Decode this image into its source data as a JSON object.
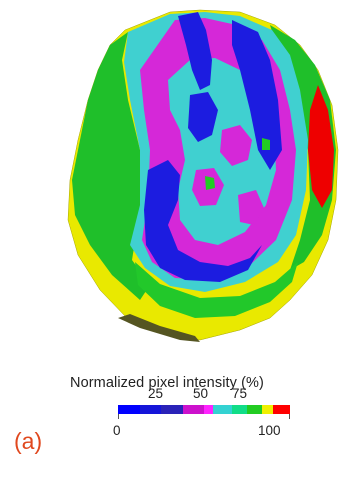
{
  "figure": {
    "panel_label": "(a)"
  },
  "legend": {
    "title": "Normalized pixel intensity (%)",
    "ticks_top": [
      "25",
      "50",
      "75"
    ],
    "tick_min": "0",
    "tick_max": "100",
    "segments": [
      {
        "color": "#0000ff",
        "from": 0,
        "to": 12.5
      },
      {
        "color": "#1515d9",
        "from": 12.5,
        "to": 25
      },
      {
        "color": "#2a22b8",
        "from": 25,
        "to": 37.5
      },
      {
        "color": "#cc11cc",
        "from": 37.5,
        "to": 50
      },
      {
        "color": "#ff22ff",
        "from": 50,
        "to": 55
      },
      {
        "color": "#33d2d2",
        "from": 55,
        "to": 66
      },
      {
        "color": "#11dd88",
        "from": 66,
        "to": 75
      },
      {
        "color": "#22cc22",
        "from": 75,
        "to": 84
      },
      {
        "color": "#f0f000",
        "from": 84,
        "to": 90
      },
      {
        "color": "#ff0000",
        "from": 90,
        "to": 100
      }
    ]
  },
  "colors": {
    "green": "#1fbf2a",
    "yellow": "#e9e900",
    "cyan": "#40d0d0",
    "blue": "#1c1ce0",
    "magenta": "#d528d8",
    "red": "#ee0000",
    "label_orange": "#e0481e"
  }
}
